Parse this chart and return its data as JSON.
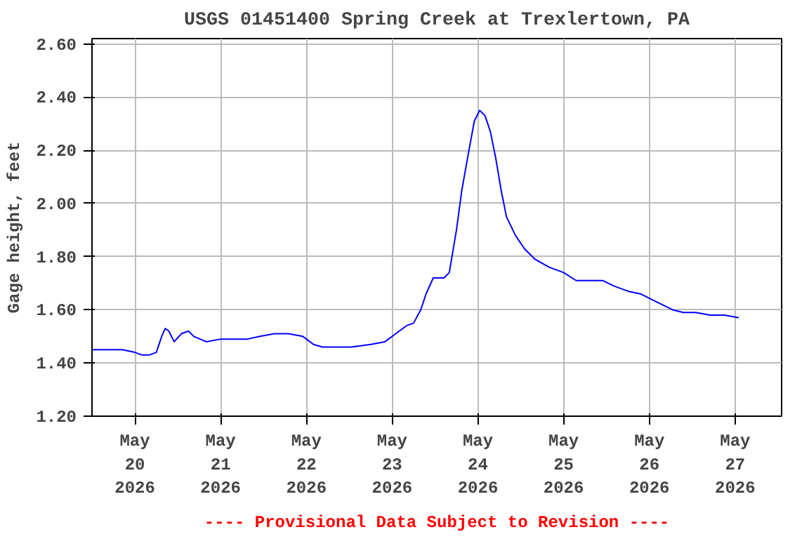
{
  "chart_data": {
    "type": "line",
    "title": "USGS 01451400 Spring Creek at Trexlertown, PA",
    "ylabel": "Gage height, feet",
    "annotations": [
      "---- Provisional Data Subject to Revision ----"
    ],
    "x": [
      "2026-05-19T12:00",
      "2026-05-19T20:30",
      "2026-05-20T00:00",
      "2026-05-20T02:00",
      "2026-05-20T04:00",
      "2026-05-20T06:00",
      "2026-05-20T07:30",
      "2026-05-20T08:30",
      "2026-05-20T09:30",
      "2026-05-20T11:00",
      "2026-05-20T13:00",
      "2026-05-20T15:00",
      "2026-05-20T16:30",
      "2026-05-20T20:00",
      "2026-05-21T00:00",
      "2026-05-21T03:30",
      "2026-05-21T07:30",
      "2026-05-21T11:00",
      "2026-05-21T15:00",
      "2026-05-21T19:00",
      "2026-05-21T23:00",
      "2026-05-22T02:00",
      "2026-05-22T04:30",
      "2026-05-22T08:30",
      "2026-05-22T12:30",
      "2026-05-22T18:00",
      "2026-05-22T22:00",
      "2026-05-23T01:00",
      "2026-05-23T04:00",
      "2026-05-23T06:00",
      "2026-05-23T08:00",
      "2026-05-23T09:30",
      "2026-05-23T11:30",
      "2026-05-23T14:30",
      "2026-05-23T16:00",
      "2026-05-23T18:00",
      "2026-05-23T19:30",
      "2026-05-23T21:30",
      "2026-05-23T23:00",
      "2026-05-24T00:30",
      "2026-05-24T02:00",
      "2026-05-24T03:30",
      "2026-05-24T05:00",
      "2026-05-24T06:30",
      "2026-05-24T08:00",
      "2026-05-24T10:30",
      "2026-05-24T13:00",
      "2026-05-24T16:00",
      "2026-05-24T20:00",
      "2026-05-25T00:00",
      "2026-05-25T03:30",
      "2026-05-25T07:30",
      "2026-05-25T11:00",
      "2026-05-25T14:00",
      "2026-05-25T18:00",
      "2026-05-25T21:30",
      "2026-05-26T00:30",
      "2026-05-26T03:30",
      "2026-05-26T06:30",
      "2026-05-26T09:30",
      "2026-05-26T13:00",
      "2026-05-26T17:00",
      "2026-05-26T21:00",
      "2026-05-27T01:00"
    ],
    "series": [
      {
        "color": "#0000ff",
        "values": [
          1.45,
          1.45,
          1.44,
          1.43,
          1.43,
          1.44,
          1.5,
          1.53,
          1.52,
          1.48,
          1.51,
          1.52,
          1.5,
          1.48,
          1.49,
          1.49,
          1.49,
          1.5,
          1.51,
          1.51,
          1.5,
          1.47,
          1.46,
          1.46,
          1.46,
          1.47,
          1.48,
          1.51,
          1.54,
          1.55,
          1.6,
          1.66,
          1.72,
          1.72,
          1.74,
          1.9,
          2.05,
          2.2,
          2.31,
          2.35,
          2.33,
          2.27,
          2.17,
          2.05,
          1.95,
          1.88,
          1.83,
          1.79,
          1.76,
          1.74,
          1.71,
          1.71,
          1.71,
          1.69,
          1.67,
          1.66,
          1.64,
          1.62,
          1.6,
          1.59,
          1.59,
          1.58,
          1.58,
          1.57
        ]
      }
    ],
    "xlim": [
      "2026-05-19T12:00",
      "2026-05-27T13:00"
    ],
    "xticks": [
      {
        "value": "2026-05-20",
        "label": "May\n20\n2026"
      },
      {
        "value": "2026-05-21",
        "label": "May\n21\n2026"
      },
      {
        "value": "2026-05-22",
        "label": "May\n22\n2026"
      },
      {
        "value": "2026-05-23",
        "label": "May\n23\n2026"
      },
      {
        "value": "2026-05-24",
        "label": "May\n24\n2026"
      },
      {
        "value": "2026-05-25",
        "label": "May\n25\n2026"
      },
      {
        "value": "2026-05-26",
        "label": "May\n26\n2026"
      },
      {
        "value": "2026-05-27",
        "label": "May\n27\n2026"
      }
    ],
    "ylim": [
      1.2,
      2.62
    ],
    "yticks": [
      {
        "value": 1.2,
        "label": "1.20"
      },
      {
        "value": 1.4,
        "label": "1.40"
      },
      {
        "value": 1.6,
        "label": "1.60"
      },
      {
        "value": 1.8,
        "label": "1.80"
      },
      {
        "value": 2.0,
        "label": "2.00"
      },
      {
        "value": 2.2,
        "label": "2.20"
      },
      {
        "value": 2.4,
        "label": "2.40"
      },
      {
        "value": 2.6,
        "label": "2.60"
      }
    ],
    "grid": true,
    "line_style": "solid",
    "marker": "none"
  }
}
